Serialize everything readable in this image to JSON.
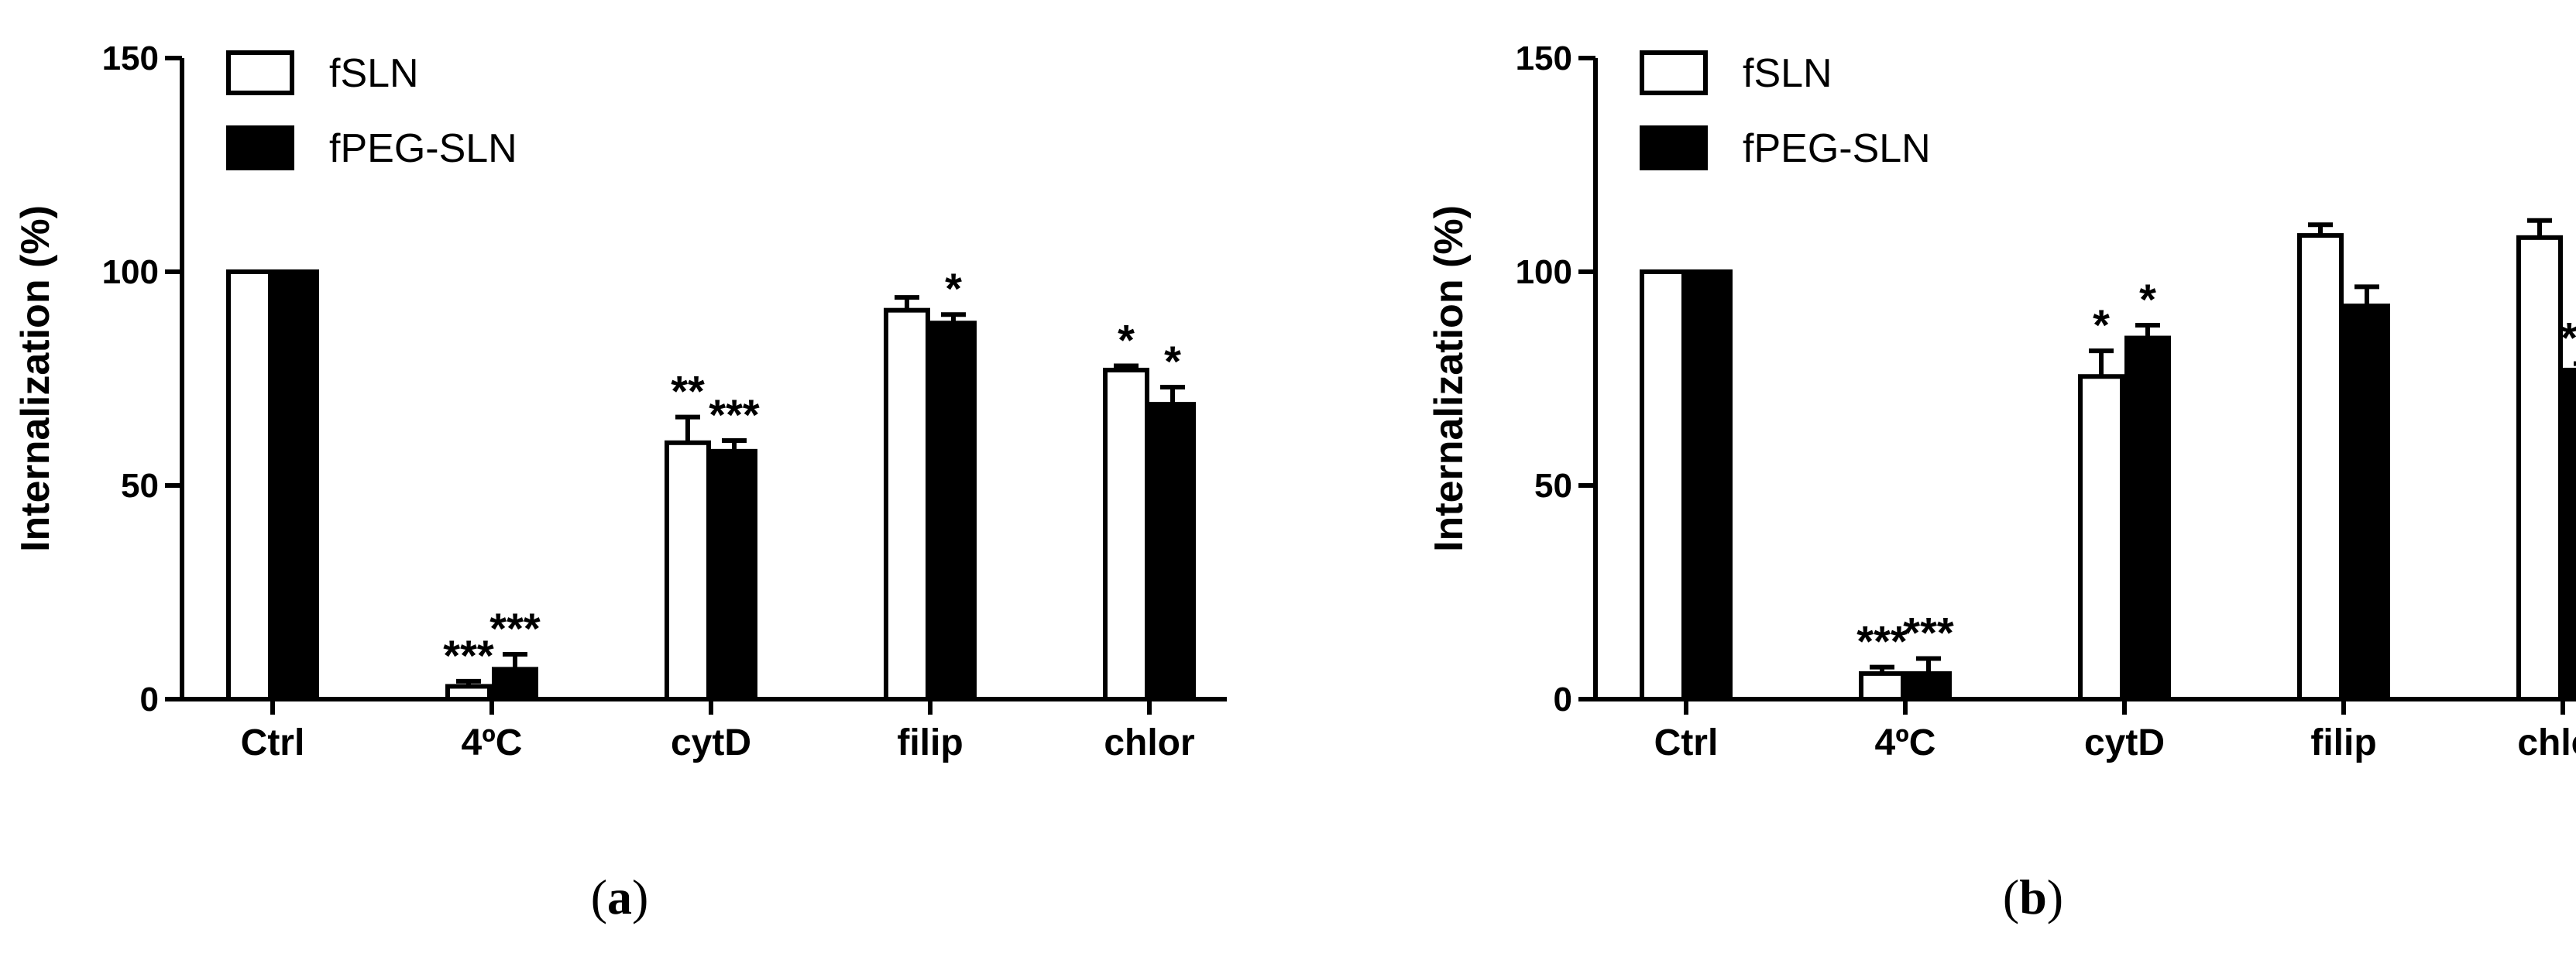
{
  "legend": {
    "series": [
      "fSLN",
      "fPEG-SLN"
    ],
    "position": "top-left"
  },
  "colors": {
    "fSLN_fill": "#ffffff",
    "fPEG-SLN_fill": "#000000",
    "stroke": "#000000"
  },
  "chart_data": [
    {
      "type": "bar",
      "panel_label_letter": "a",
      "ylabel": "Internalization (%)",
      "ylim": [
        0,
        150
      ],
      "yticks": [
        0,
        50,
        100,
        150
      ],
      "categories": [
        "Ctrl",
        "4ºC",
        "cytD",
        "filip",
        "chlor"
      ],
      "series": [
        {
          "name": "fSLN",
          "values": [
            100,
            3,
            60,
            91,
            77
          ],
          "errors": [
            0,
            1.2,
            6,
            3,
            1
          ],
          "significance": [
            "",
            "***",
            "**",
            "",
            "*"
          ]
        },
        {
          "name": "fPEG-SLN",
          "values": [
            100,
            7,
            58,
            88,
            69
          ],
          "errors": [
            0,
            3.5,
            2.5,
            2,
            4
          ],
          "significance": [
            "",
            "***",
            "***",
            "*",
            "*"
          ]
        }
      ]
    },
    {
      "type": "bar",
      "panel_label_letter": "b",
      "ylabel": "Internalization (%)",
      "ylim": [
        0,
        150
      ],
      "yticks": [
        0,
        50,
        100,
        150
      ],
      "categories": [
        "Ctrl",
        "4ºC",
        "cytD",
        "filip",
        "chlor"
      ],
      "series": [
        {
          "name": "fSLN",
          "values": [
            100,
            6,
            75.5,
            108.5,
            108
          ],
          "errors": [
            0,
            1.5,
            6,
            2.5,
            4
          ],
          "significance": [
            "",
            "***",
            "*",
            "",
            ""
          ]
        },
        {
          "name": "fPEG-SLN",
          "values": [
            100,
            6,
            84.5,
            92,
            77
          ],
          "errors": [
            0,
            3.5,
            3,
            4.5,
            1.5
          ],
          "significance": [
            "",
            "***",
            "*",
            "",
            "***"
          ]
        }
      ]
    }
  ]
}
